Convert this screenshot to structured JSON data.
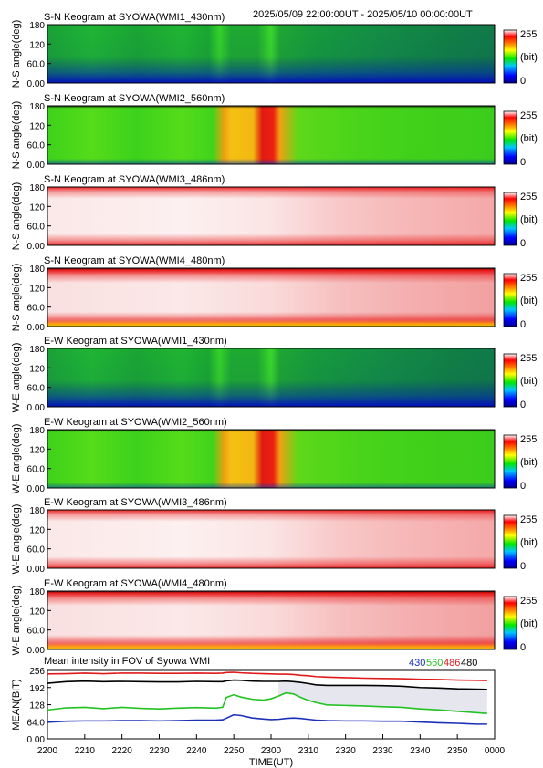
{
  "header": {
    "time_range": "2025/05/09 22:00:00UT - 2025/05/10 00:00:00UT"
  },
  "chart_data": [
    {
      "type": "heatmap",
      "title": "S-N Keogram at SYOWA(WMI1_430nm)",
      "ylabel": "N-S angle(deg)",
      "yticks": [
        "0.00",
        "60.0",
        "120",
        "180"
      ],
      "ylim": [
        0,
        180
      ],
      "colorbar": {
        "max": "255",
        "unit": "(bit)",
        "min": "0"
      },
      "color_scheme": "blue-green"
    },
    {
      "type": "heatmap",
      "title": "S-N Keogram at SYOWA(WMI2_560nm)",
      "ylabel": "N-S angle(deg)",
      "yticks": [
        "0.00",
        "60.0",
        "120",
        "180"
      ],
      "ylim": [
        0,
        180
      ],
      "colorbar": {
        "max": "255",
        "unit": "(bit)",
        "min": "0"
      },
      "color_scheme": "green-red-spike"
    },
    {
      "type": "heatmap",
      "title": "S-N Keogram at SYOWA(WMI3_486nm)",
      "ylabel": "N-S angle(deg)",
      "yticks": [
        "0.00",
        "60.0",
        "120",
        "180"
      ],
      "ylim": [
        0,
        180
      ],
      "colorbar": {
        "max": "255",
        "unit": "(bit)",
        "min": "0"
      },
      "color_scheme": "white-red"
    },
    {
      "type": "heatmap",
      "title": "S-N Keogram at SYOWA(WMI4_480nm)",
      "ylabel": "N-S angle(deg)",
      "yticks": [
        "0.00",
        "60.0",
        "120",
        "180"
      ],
      "ylim": [
        0,
        180
      ],
      "colorbar": {
        "max": "255",
        "unit": "(bit)",
        "min": "0"
      },
      "color_scheme": "white-red-edges"
    },
    {
      "type": "heatmap",
      "title": "E-W Keogram at SYOWA(WMI1_430nm)",
      "ylabel": "W-E angle(deg)",
      "yticks": [
        "0.00",
        "60.0",
        "120",
        "180"
      ],
      "ylim": [
        0,
        180
      ],
      "colorbar": {
        "max": "255",
        "unit": "(bit)",
        "min": "0"
      },
      "color_scheme": "blue-green"
    },
    {
      "type": "heatmap",
      "title": "E-W Keogram at SYOWA(WMI2_560nm)",
      "ylabel": "W-E angle(deg)",
      "yticks": [
        "0.00",
        "60.0",
        "120",
        "180"
      ],
      "ylim": [
        0,
        180
      ],
      "colorbar": {
        "max": "255",
        "unit": "(bit)",
        "min": "0"
      },
      "color_scheme": "green-red-spike"
    },
    {
      "type": "heatmap",
      "title": "E-W Keogram at SYOWA(WMI3_486nm)",
      "ylabel": "W-E angle(deg)",
      "yticks": [
        "0.00",
        "60.0",
        "120",
        "180"
      ],
      "ylim": [
        0,
        180
      ],
      "colorbar": {
        "max": "255",
        "unit": "(bit)",
        "min": "0"
      },
      "color_scheme": "white-red"
    },
    {
      "type": "heatmap",
      "title": "E-W Keogram at SYOWA(WMI4_480nm)",
      "ylabel": "W-E angle(deg)",
      "yticks": [
        "0.00",
        "60.0",
        "120",
        "180"
      ],
      "ylim": [
        0,
        180
      ],
      "colorbar": {
        "max": "255",
        "unit": "(bit)",
        "min": "0"
      },
      "color_scheme": "white-red-edges"
    },
    {
      "type": "line",
      "title": "Mean intensity in FOV of Syowa WMI",
      "ylabel": "MEAN(BIT)",
      "xlabel": "TIME(UT)",
      "ylim": [
        0,
        256
      ],
      "yticks": [
        "0.00",
        "64.0",
        "128",
        "192",
        "256"
      ],
      "xlim": [
        0,
        120
      ],
      "xticks": [
        "2200",
        "2210",
        "2220",
        "2230",
        "2240",
        "2250",
        "2300",
        "2310",
        "2320",
        "2330",
        "2340",
        "2350",
        "0000"
      ],
      "x": [
        0,
        5,
        10,
        15,
        20,
        25,
        30,
        35,
        40,
        45,
        47,
        48,
        50,
        52,
        55,
        58,
        60,
        62,
        64,
        66,
        68,
        70,
        72,
        75,
        80,
        85,
        90,
        95,
        100,
        105,
        110,
        115,
        118
      ],
      "series": [
        {
          "name": "430",
          "color": "#1c2fb8",
          "values": [
            62,
            66,
            67,
            67,
            68,
            68,
            67,
            68,
            70,
            70,
            71,
            77,
            90,
            87,
            78,
            74,
            72,
            73,
            76,
            78,
            76,
            73,
            70,
            68,
            67,
            67,
            66,
            66,
            63,
            60,
            58,
            55,
            55
          ]
        },
        {
          "name": "560",
          "color": "#22c222",
          "values": [
            108,
            116,
            118,
            113,
            118,
            114,
            112,
            115,
            117,
            115,
            118,
            155,
            165,
            156,
            148,
            145,
            150,
            160,
            172,
            168,
            155,
            144,
            136,
            127,
            125,
            123,
            120,
            118,
            112,
            108,
            103,
            98,
            95
          ]
        },
        {
          "name": "486",
          "color": "#e01a1a",
          "values": [
            243,
            244,
            246,
            244,
            246,
            246,
            245,
            245,
            246,
            245,
            246,
            248,
            249,
            247,
            245,
            244,
            243,
            242,
            242,
            241,
            238,
            236,
            233,
            231,
            229,
            227,
            226,
            225,
            223,
            222,
            220,
            219,
            218
          ]
        },
        {
          "name": "480",
          "color": "#000000",
          "values": [
            208,
            214,
            216,
            214,
            215,
            214,
            213,
            213,
            215,
            214,
            214,
            217,
            220,
            219,
            216,
            215,
            215,
            215,
            216,
            214,
            211,
            207,
            202,
            200,
            200,
            200,
            199,
            197,
            192,
            190,
            187,
            186,
            185
          ]
        }
      ]
    }
  ]
}
